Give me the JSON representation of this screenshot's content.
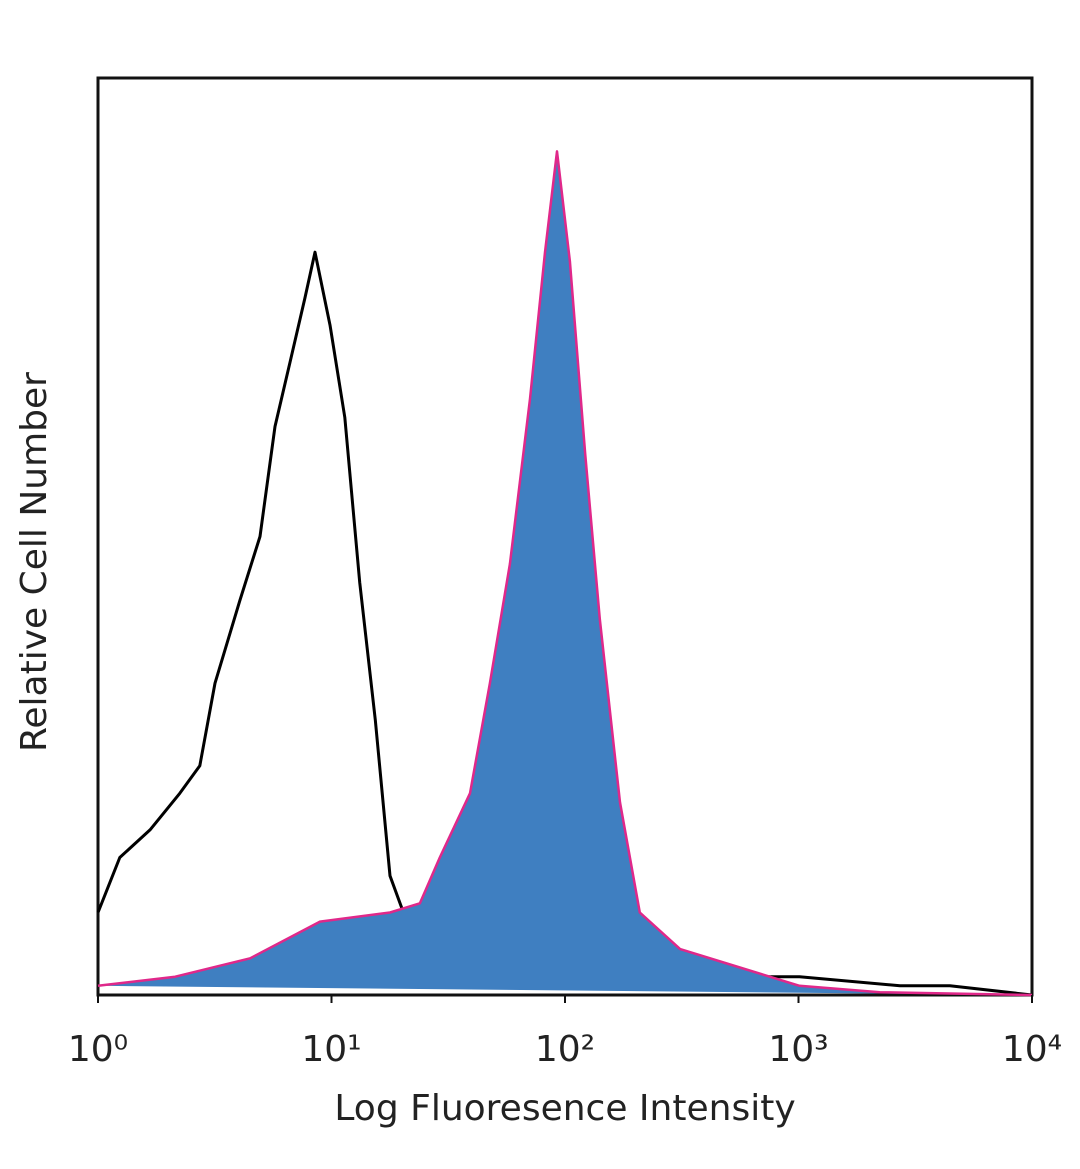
{
  "chart_data": {
    "type": "histogram-overlay",
    "x_label": "Log Fluoresence Intensity",
    "y_label": "Relative Cell Number",
    "xscale": "log",
    "xlim": [
      1,
      10000
    ],
    "ylim": [
      0,
      100
    ],
    "xticks": [
      {
        "value": 1,
        "label": "10⁰"
      },
      {
        "value": 10,
        "label": "10¹"
      },
      {
        "value": 100,
        "label": "10²"
      },
      {
        "value": 1000,
        "label": "10³"
      },
      {
        "value": 10000,
        "label": "10⁴"
      }
    ],
    "series": [
      {
        "color": "#000000",
        "fill": "none",
        "x": [
          1,
          1.24,
          1.67,
          2.24,
          2.73,
          3.17,
          4.05,
          4.94,
          5.73,
          6.64,
          7.69,
          8.5,
          9.86,
          11.4,
          13.2,
          15.4,
          17.8,
          21.7,
          29.1,
          43.3,
          64.1,
          141,
          378,
          1010,
          2720,
          4450,
          10000
        ],
        "values": [
          9,
          15,
          18,
          22,
          25,
          34,
          43,
          50,
          62,
          69,
          76,
          81,
          73,
          63,
          45,
          30,
          13,
          7,
          4,
          3,
          3,
          2,
          2,
          2,
          1,
          1,
          0
        ]
      },
      {
        "color": "#e0288a",
        "fill": "#3f7fc1",
        "x": [
          1,
          2.14,
          4.48,
          8.93,
          17.8,
          23.9,
          29.1,
          39.2,
          47.7,
          58.1,
          70.8,
          82.1,
          92.4,
          105,
          122,
          141,
          172,
          209,
          311,
          561,
          1010,
          2230,
          10000
        ],
        "values": [
          1,
          2,
          4,
          8,
          9,
          10,
          15,
          22,
          34,
          47,
          65,
          81,
          92,
          80,
          59,
          41,
          21,
          9,
          5,
          3,
          1,
          0.3,
          0
        ]
      }
    ]
  }
}
